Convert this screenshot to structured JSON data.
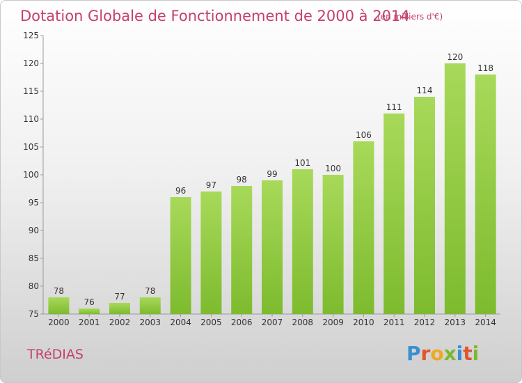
{
  "chart_data": {
    "type": "bar",
    "title": "Dotation Globale de Fonctionnement de 2000 à 2014",
    "subtitle": "(en milliers d'€)",
    "categories": [
      "2000",
      "2001",
      "2002",
      "2003",
      "2004",
      "2005",
      "2006",
      "2007",
      "2008",
      "2009",
      "2010",
      "2011",
      "2012",
      "2013",
      "2014"
    ],
    "values": [
      78,
      76,
      77,
      78,
      96,
      97,
      98,
      99,
      101,
      100,
      106,
      111,
      114,
      120,
      118
    ],
    "yticks": [
      75,
      80,
      85,
      90,
      95,
      100,
      105,
      110,
      115,
      120,
      125
    ],
    "ylim": [
      75,
      125
    ],
    "grid": false,
    "bar_color": "#7dbb2e",
    "bar_color_light": "#a8d95a"
  },
  "commune": "TRéDIAS",
  "logo": {
    "text": "Proxiti",
    "letters": [
      "P",
      "r",
      "o",
      "x",
      "i",
      "t",
      "i"
    ],
    "colors": [
      "#3a8fd0",
      "#e0562a",
      "#f0a81e",
      "#7cb82f",
      "#3a8fd0",
      "#e0562a",
      "#7cb82f"
    ]
  }
}
